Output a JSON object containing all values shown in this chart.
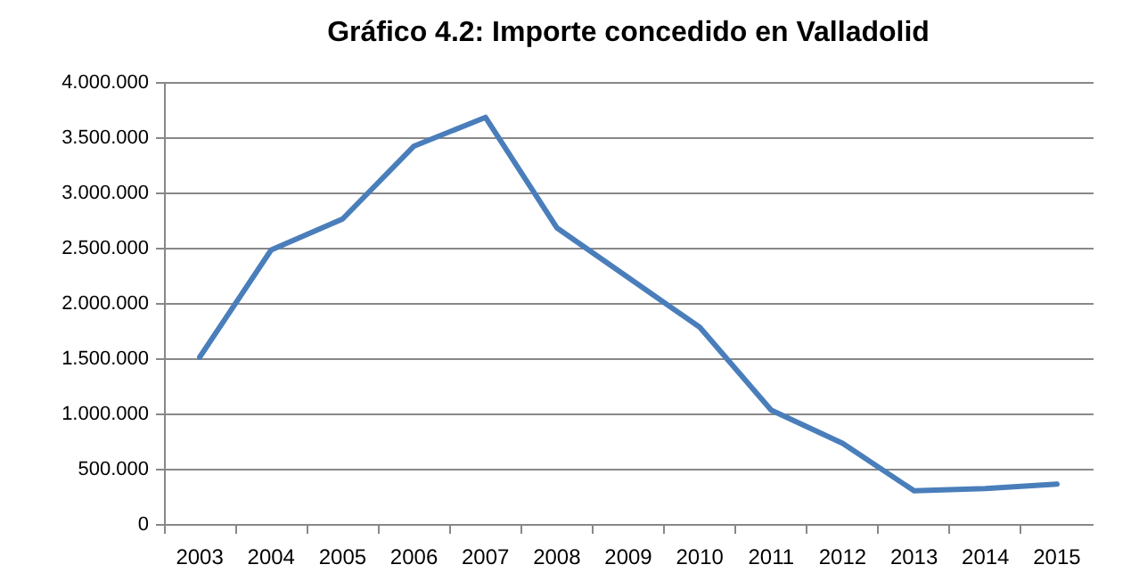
{
  "chart_data": {
    "type": "line",
    "title": "Gráfico 4.2: Importe concedido en Valladolid",
    "categories": [
      "2003",
      "2004",
      "2005",
      "2006",
      "2007",
      "2008",
      "2009",
      "2010",
      "2011",
      "2012",
      "2013",
      "2014",
      "2015"
    ],
    "series": [
      {
        "color": "#4a7ebb",
        "values": [
          1510000,
          2480000,
          2760000,
          3420000,
          3680000,
          2680000,
          2230000,
          1780000,
          1030000,
          730000,
          300000,
          320000,
          360000
        ]
      }
    ],
    "ylim": [
      0,
      4000000
    ],
    "yticks": [
      0,
      {
        "value": 500000,
        "label": "500.000"
      },
      {
        "value": 1000000,
        "label": "1.000.000"
      },
      {
        "value": 1500000,
        "label": "1.500.000"
      },
      {
        "value": 2000000,
        "label": "2.000.000"
      },
      {
        "value": 2500000,
        "label": "2.500.000"
      },
      {
        "value": 3000000,
        "label": "3.000.000"
      },
      {
        "value": 3500000,
        "label": "3.500.000"
      },
      {
        "value": 4000000,
        "label": "4.000.000"
      }
    ],
    "grid": "y",
    "marker": "none",
    "line_style": "solid"
  }
}
